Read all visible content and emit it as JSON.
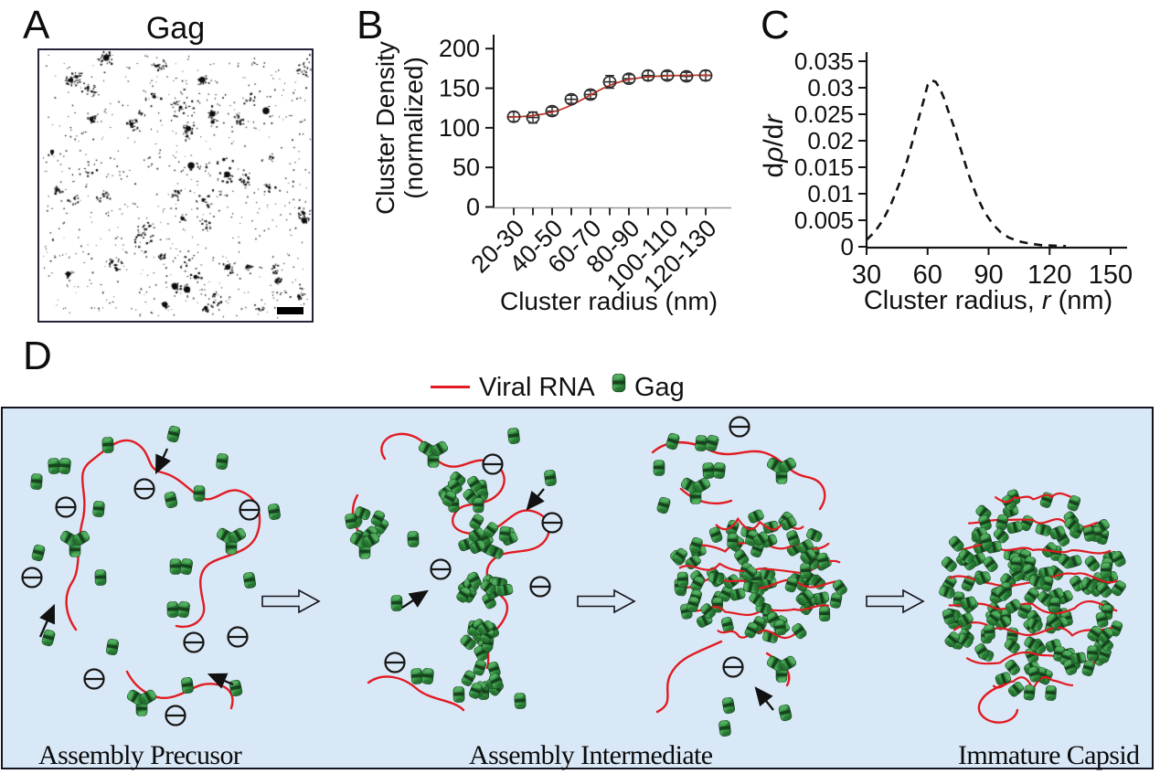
{
  "panel_a": {
    "label": "A",
    "title": "Gag",
    "render": {
      "seed": 11,
      "clusters": 58,
      "speckles": 640
    }
  },
  "panel_d": {
    "label": "D",
    "legend": [
      {
        "label": "Viral RNA",
        "marker": "red-line"
      },
      {
        "label": "Gag",
        "marker": "green-capsule"
      }
    ],
    "stage_labels": [
      "Assembly Precusor",
      "Assembly Intermediate",
      "Immature Capsid"
    ],
    "background": "#d9e8f6",
    "rna_color": "#e11b22",
    "gag_color": "#2f8c3e",
    "charge_symbol": "−"
  },
  "chart_data": [
    {
      "panel": "B",
      "label": "B",
      "type": "scatter",
      "categories": [
        "20-30",
        "30-40",
        "40-50",
        "50-60",
        "60-70",
        "70-80",
        "80-90",
        "90-100",
        "100-110",
        "110-120",
        "120-130"
      ],
      "xtick_labels_shown": [
        "20-30",
        "40-50",
        "60-70",
        "80-90",
        "100-110",
        "120-130"
      ],
      "values": [
        114,
        113,
        121,
        136,
        142,
        158,
        162,
        166,
        166,
        165,
        166
      ],
      "errors": [
        6,
        7,
        5,
        5,
        5,
        8,
        5,
        6,
        5,
        5,
        6
      ],
      "fit": {
        "type": "sigmoid",
        "base": 112.5,
        "amplitude": 54,
        "midpoint_index": 3.85,
        "width": 1.0,
        "color": "#c0392b"
      },
      "xlabel": "Cluster radius (nm)",
      "ylabel_line1": "Cluster Density",
      "ylabel_line2": "(normalized)",
      "yticks": [
        0,
        50,
        100,
        150,
        200
      ],
      "ylim": [
        0,
        215
      ],
      "grid": false,
      "marker": "open-circle"
    },
    {
      "panel": "C",
      "label": "C",
      "type": "line",
      "line_style": "dashed",
      "x": [
        30,
        34,
        38,
        42,
        46,
        50,
        53,
        56,
        58,
        60,
        62,
        64,
        66,
        68,
        70,
        73,
        76,
        80,
        84,
        88,
        92,
        96,
        100,
        105,
        110,
        116,
        122,
        128
      ],
      "y": [
        0.0013,
        0.0028,
        0.005,
        0.008,
        0.0118,
        0.0163,
        0.0205,
        0.0248,
        0.0275,
        0.0305,
        0.0314,
        0.0311,
        0.0299,
        0.0281,
        0.0258,
        0.0226,
        0.0188,
        0.0138,
        0.0097,
        0.0065,
        0.0043,
        0.0027,
        0.0017,
        0.001,
        0.0006,
        0.0003,
        0.0002,
        0.0001
      ],
      "peak": {
        "x": 62,
        "y": 0.0314
      },
      "xlabel_pre": "Cluster radius, ",
      "xlabel_italic": "r",
      "xlabel_post": " (nm)",
      "ylabel_pre": "d",
      "ylabel_italic1": "ρ",
      "ylabel_mid": "/d",
      "ylabel_italic2": "r",
      "xticks": [
        30,
        60,
        90,
        120,
        150
      ],
      "ytick_labels": [
        "0",
        "0.005",
        "0.01",
        "0.015",
        "0.02",
        "0.025",
        "0.03",
        "0.035"
      ],
      "ytick_values": [
        0,
        0.005,
        0.01,
        0.015,
        0.02,
        0.025,
        0.03,
        0.035
      ],
      "xlim": [
        30,
        157
      ],
      "ylim": [
        0,
        0.035
      ],
      "grid": false
    }
  ]
}
